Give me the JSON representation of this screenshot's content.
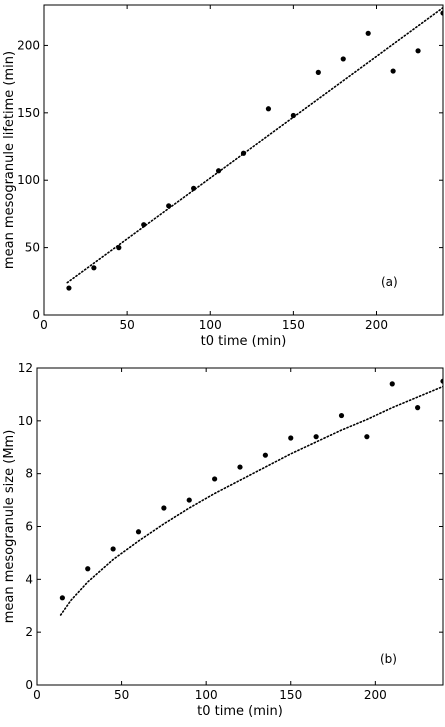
{
  "chart_data": [
    {
      "type": "scatter",
      "panel_label": "(a)",
      "xlabel": "t0 time (min)",
      "ylabel": "mean mesogranule lifetime (min)",
      "xlim": [
        0,
        240
      ],
      "ylim": [
        0,
        230
      ],
      "xticks": [
        0,
        50,
        100,
        150,
        200
      ],
      "yticks": [
        0,
        50,
        100,
        150,
        200
      ],
      "grid": false,
      "series": [
        {
          "kind": "points",
          "color": "#000000",
          "x": [
            15,
            30,
            45,
            60,
            75,
            90,
            105,
            120,
            135,
            150,
            165,
            180,
            195,
            210,
            225,
            240
          ],
          "y": [
            20,
            35,
            50,
            67,
            81,
            94,
            107,
            120,
            153,
            148,
            180,
            190,
            209,
            181,
            196,
            224
          ]
        },
        {
          "kind": "fit",
          "style": "dotted",
          "color": "#000000",
          "x": [
            14,
            240
          ],
          "y": [
            24,
            228
          ]
        }
      ]
    },
    {
      "type": "scatter",
      "panel_label": "(b)",
      "xlabel": "t0 time (min)",
      "ylabel": "mean mesogranule size (Mm)",
      "xlim": [
        0,
        240
      ],
      "ylim": [
        0,
        12
      ],
      "xticks": [
        0,
        50,
        100,
        150,
        200
      ],
      "yticks": [
        0,
        2,
        4,
        6,
        8,
        10,
        12
      ],
      "grid": false,
      "series": [
        {
          "kind": "points",
          "color": "#000000",
          "x": [
            15,
            30,
            45,
            60,
            75,
            90,
            105,
            120,
            135,
            150,
            165,
            180,
            195,
            210,
            225,
            240
          ],
          "y": [
            3.3,
            4.4,
            5.15,
            5.8,
            6.7,
            7.0,
            7.8,
            8.25,
            8.7,
            9.35,
            9.4,
            10.2,
            9.4,
            11.4,
            10.5,
            11.5
          ]
        },
        {
          "kind": "fit",
          "style": "dotted",
          "color": "#000000",
          "x": [
            14,
            20,
            30,
            45,
            60,
            75,
            90,
            105,
            120,
            135,
            150,
            165,
            180,
            195,
            210,
            225,
            240
          ],
          "y": [
            2.65,
            3.2,
            3.9,
            4.75,
            5.45,
            6.1,
            6.7,
            7.25,
            7.75,
            8.25,
            8.75,
            9.2,
            9.65,
            10.05,
            10.5,
            10.9,
            11.3
          ]
        }
      ]
    }
  ]
}
